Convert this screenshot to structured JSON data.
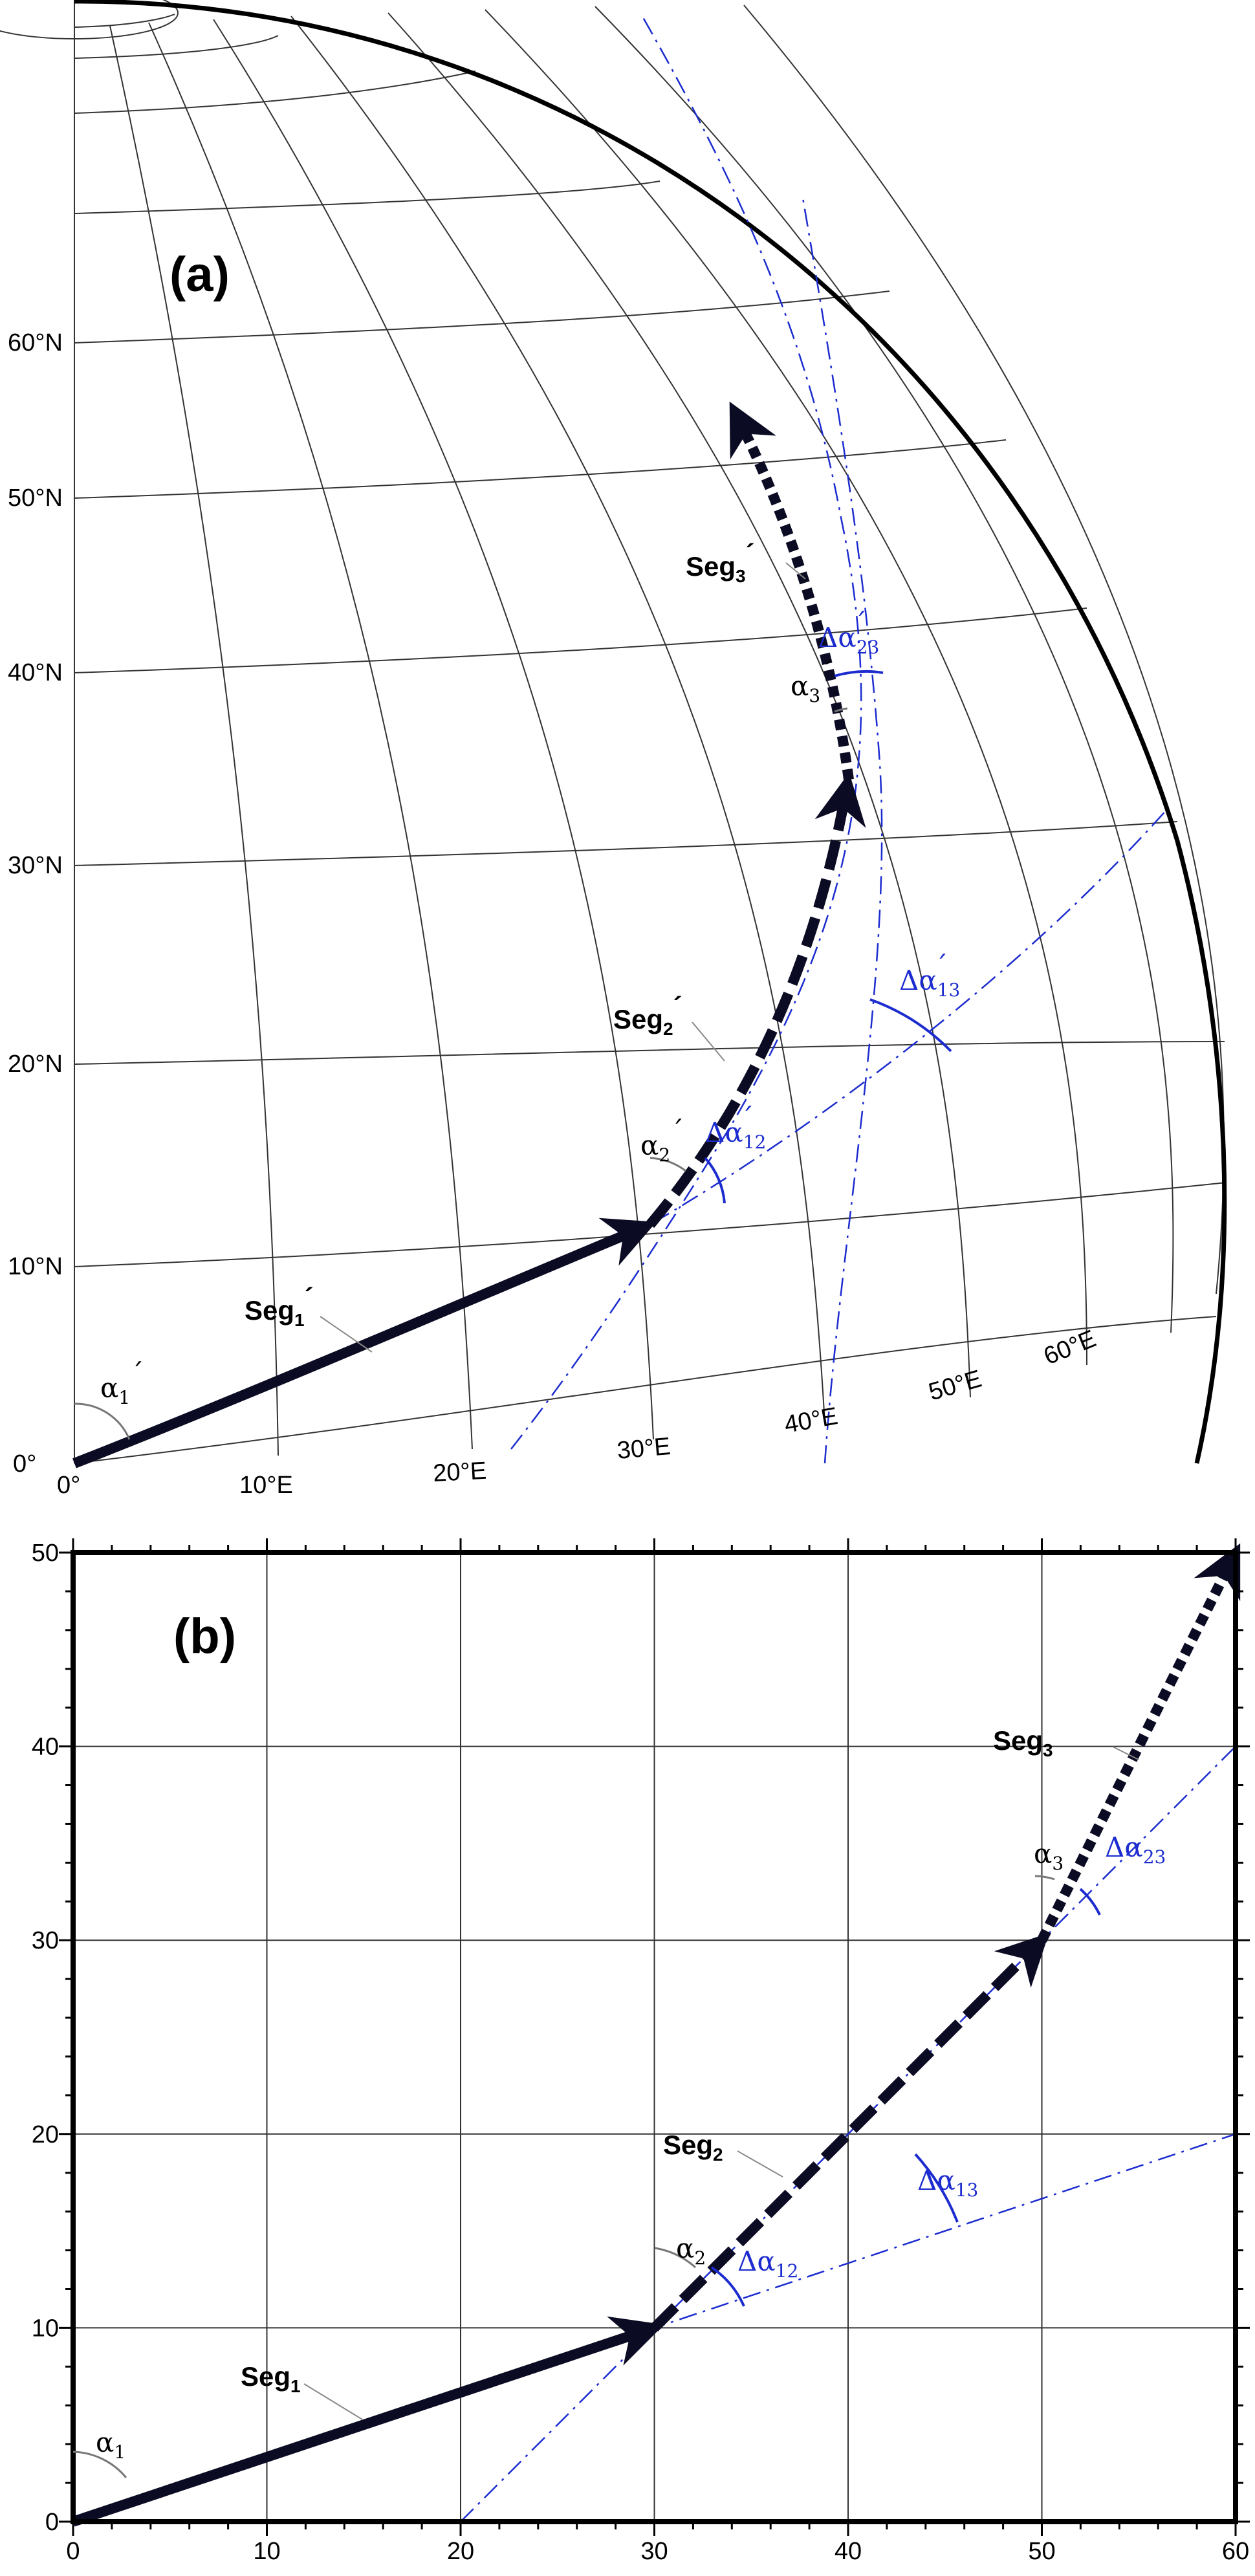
{
  "panel_a": {
    "label": "(a)",
    "lat_labels": [
      "0°",
      "10°N",
      "20°N",
      "30°N",
      "40°N",
      "50°N",
      "60°N"
    ],
    "lon_labels": [
      "0°",
      "10°E",
      "20°E",
      "30°E",
      "40°E",
      "50°E",
      "60°E"
    ],
    "segments": [
      {
        "text": "Seg",
        "sub": "1",
        "prime": "´"
      },
      {
        "text": "Seg",
        "sub": "2",
        "prime": "´"
      },
      {
        "text": "Seg",
        "sub": "3",
        "prime": "´"
      }
    ],
    "angles": [
      {
        "symbol": "α",
        "sub": "1",
        "prime": "´"
      },
      {
        "symbol": "α",
        "sub": "2",
        "prime": "´"
      },
      {
        "symbol": "α",
        "sub": "3",
        "prime": "´"
      }
    ],
    "delta_angles": [
      {
        "symbol": "Δα",
        "sub": "12",
        "prime": "´"
      },
      {
        "symbol": "Δα",
        "sub": "13",
        "prime": "´"
      },
      {
        "symbol": "Δα",
        "sub": "23",
        "prime": "´"
      }
    ]
  },
  "panel_b": {
    "label": "(b)",
    "x_ticks": [
      "0",
      "10",
      "20",
      "30",
      "40",
      "50",
      "60"
    ],
    "y_ticks": [
      "0",
      "10",
      "20",
      "30",
      "40",
      "50"
    ],
    "xlim": [
      0,
      60
    ],
    "ylim": [
      0,
      50
    ],
    "points": [
      [
        0,
        0
      ],
      [
        30,
        10
      ],
      [
        50,
        30
      ],
      [
        60,
        50
      ]
    ],
    "segments": [
      {
        "text": "Seg",
        "sub": "1"
      },
      {
        "text": "Seg",
        "sub": "2"
      },
      {
        "text": "Seg",
        "sub": "3"
      }
    ],
    "angles": [
      {
        "symbol": "α",
        "sub": "1"
      },
      {
        "symbol": "α",
        "sub": "2"
      },
      {
        "symbol": "α",
        "sub": "3"
      }
    ],
    "delta_angles": [
      {
        "symbol": "Δα",
        "sub": "12"
      },
      {
        "symbol": "Δα",
        "sub": "13"
      },
      {
        "symbol": "Δα",
        "sub": "23"
      }
    ]
  },
  "colors": {
    "construction": "#1c2ccf",
    "path": "#0b0b24",
    "grid": "#333333"
  }
}
